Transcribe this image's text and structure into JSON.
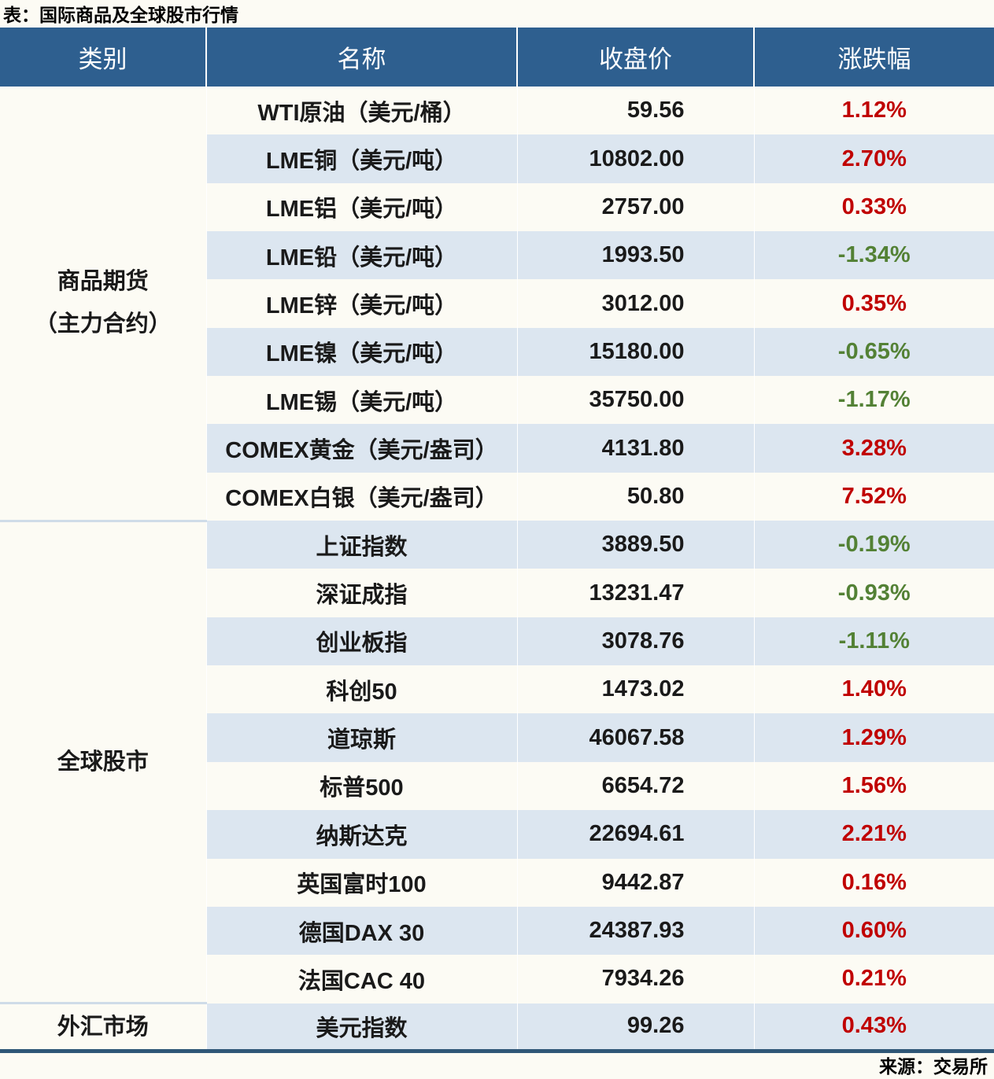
{
  "title": "表：国际商品及全球股市行情",
  "source": "来源：交易所",
  "columns": [
    "类别",
    "名称",
    "收盘价",
    "涨跌幅"
  ],
  "colors": {
    "header_bg": "#2E5F8F",
    "stripe_bg": "#DCE6F0",
    "up": "#C00000",
    "down": "#538135",
    "bottom_border": "#2F5777"
  },
  "groups": [
    {
      "category_lines": [
        "商品期货",
        "（主力合约）"
      ],
      "rows": [
        {
          "name": "WTI原油（美元/桶）",
          "close": "59.56",
          "change": "1.12%",
          "direction": "up"
        },
        {
          "name": "LME铜（美元/吨）",
          "close": "10802.00",
          "change": "2.70%",
          "direction": "up"
        },
        {
          "name": "LME铝（美元/吨）",
          "close": "2757.00",
          "change": "0.33%",
          "direction": "up"
        },
        {
          "name": "LME铅（美元/吨）",
          "close": "1993.50",
          "change": "-1.34%",
          "direction": "down"
        },
        {
          "name": "LME锌（美元/吨）",
          "close": "3012.00",
          "change": "0.35%",
          "direction": "up"
        },
        {
          "name": "LME镍（美元/吨）",
          "close": "15180.00",
          "change": "-0.65%",
          "direction": "down"
        },
        {
          "name": "LME锡（美元/吨）",
          "close": "35750.00",
          "change": "-1.17%",
          "direction": "down"
        },
        {
          "name": "COMEX黄金（美元/盎司）",
          "close": "4131.80",
          "change": "3.28%",
          "direction": "up"
        },
        {
          "name": "COMEX白银（美元/盎司）",
          "close": "50.80",
          "change": "7.52%",
          "direction": "up"
        }
      ]
    },
    {
      "category_lines": [
        "全球股市"
      ],
      "rows": [
        {
          "name": "上证指数",
          "close": "3889.50",
          "change": "-0.19%",
          "direction": "down"
        },
        {
          "name": "深证成指",
          "close": "13231.47",
          "change": "-0.93%",
          "direction": "down"
        },
        {
          "name": "创业板指",
          "close": "3078.76",
          "change": "-1.11%",
          "direction": "down"
        },
        {
          "name": "科创50",
          "close": "1473.02",
          "change": "1.40%",
          "direction": "up"
        },
        {
          "name": "道琼斯",
          "close": "46067.58",
          "change": "1.29%",
          "direction": "up"
        },
        {
          "name": "标普500",
          "close": "6654.72",
          "change": "1.56%",
          "direction": "up"
        },
        {
          "name": "纳斯达克",
          "close": "22694.61",
          "change": "2.21%",
          "direction": "up"
        },
        {
          "name": "英国富时100",
          "close": "9442.87",
          "change": "0.16%",
          "direction": "up"
        },
        {
          "name": "德国DAX 30",
          "close": "24387.93",
          "change": "0.60%",
          "direction": "up"
        },
        {
          "name": "法国CAC 40",
          "close": "7934.26",
          "change": "0.21%",
          "direction": "up"
        }
      ]
    },
    {
      "category_lines": [
        "外汇市场"
      ],
      "rows": [
        {
          "name": "美元指数",
          "close": "99.26",
          "change": "0.43%",
          "direction": "up"
        }
      ]
    }
  ],
  "chart_data": {
    "type": "table",
    "title": "表：国际商品及全球股市行情",
    "columns": [
      "类别",
      "名称",
      "收盘价",
      "涨跌幅(%)"
    ],
    "rows": [
      [
        "商品期货（主力合约）",
        "WTI原油（美元/桶）",
        59.56,
        1.12
      ],
      [
        "商品期货（主力合约）",
        "LME铜（美元/吨）",
        10802.0,
        2.7
      ],
      [
        "商品期货（主力合约）",
        "LME铝（美元/吨）",
        2757.0,
        0.33
      ],
      [
        "商品期货（主力合约）",
        "LME铅（美元/吨）",
        1993.5,
        -1.34
      ],
      [
        "商品期货（主力合约）",
        "LME锌（美元/吨）",
        3012.0,
        0.35
      ],
      [
        "商品期货（主力合约）",
        "LME镍（美元/吨）",
        15180.0,
        -0.65
      ],
      [
        "商品期货（主力合约）",
        "LME锡（美元/吨）",
        35750.0,
        -1.17
      ],
      [
        "商品期货（主力合约）",
        "COMEX黄金（美元/盎司）",
        4131.8,
        3.28
      ],
      [
        "商品期货（主力合约）",
        "COMEX白银（美元/盎司）",
        50.8,
        7.52
      ],
      [
        "全球股市",
        "上证指数",
        3889.5,
        -0.19
      ],
      [
        "全球股市",
        "深证成指",
        13231.47,
        -0.93
      ],
      [
        "全球股市",
        "创业板指",
        3078.76,
        -1.11
      ],
      [
        "全球股市",
        "科创50",
        1473.02,
        1.4
      ],
      [
        "全球股市",
        "道琼斯",
        46067.58,
        1.29
      ],
      [
        "全球股市",
        "标普500",
        6654.72,
        1.56
      ],
      [
        "全球股市",
        "纳斯达克",
        22694.61,
        2.21
      ],
      [
        "全球股市",
        "英国富时100",
        9442.87,
        0.16
      ],
      [
        "全球股市",
        "德国DAX 30",
        24387.93,
        0.6
      ],
      [
        "全球股市",
        "法国CAC 40",
        7934.26,
        0.21
      ],
      [
        "外汇市场",
        "美元指数",
        99.26,
        0.43
      ]
    ],
    "source": "来源：交易所",
    "value_color_rule": "positive=red, negative=green"
  }
}
